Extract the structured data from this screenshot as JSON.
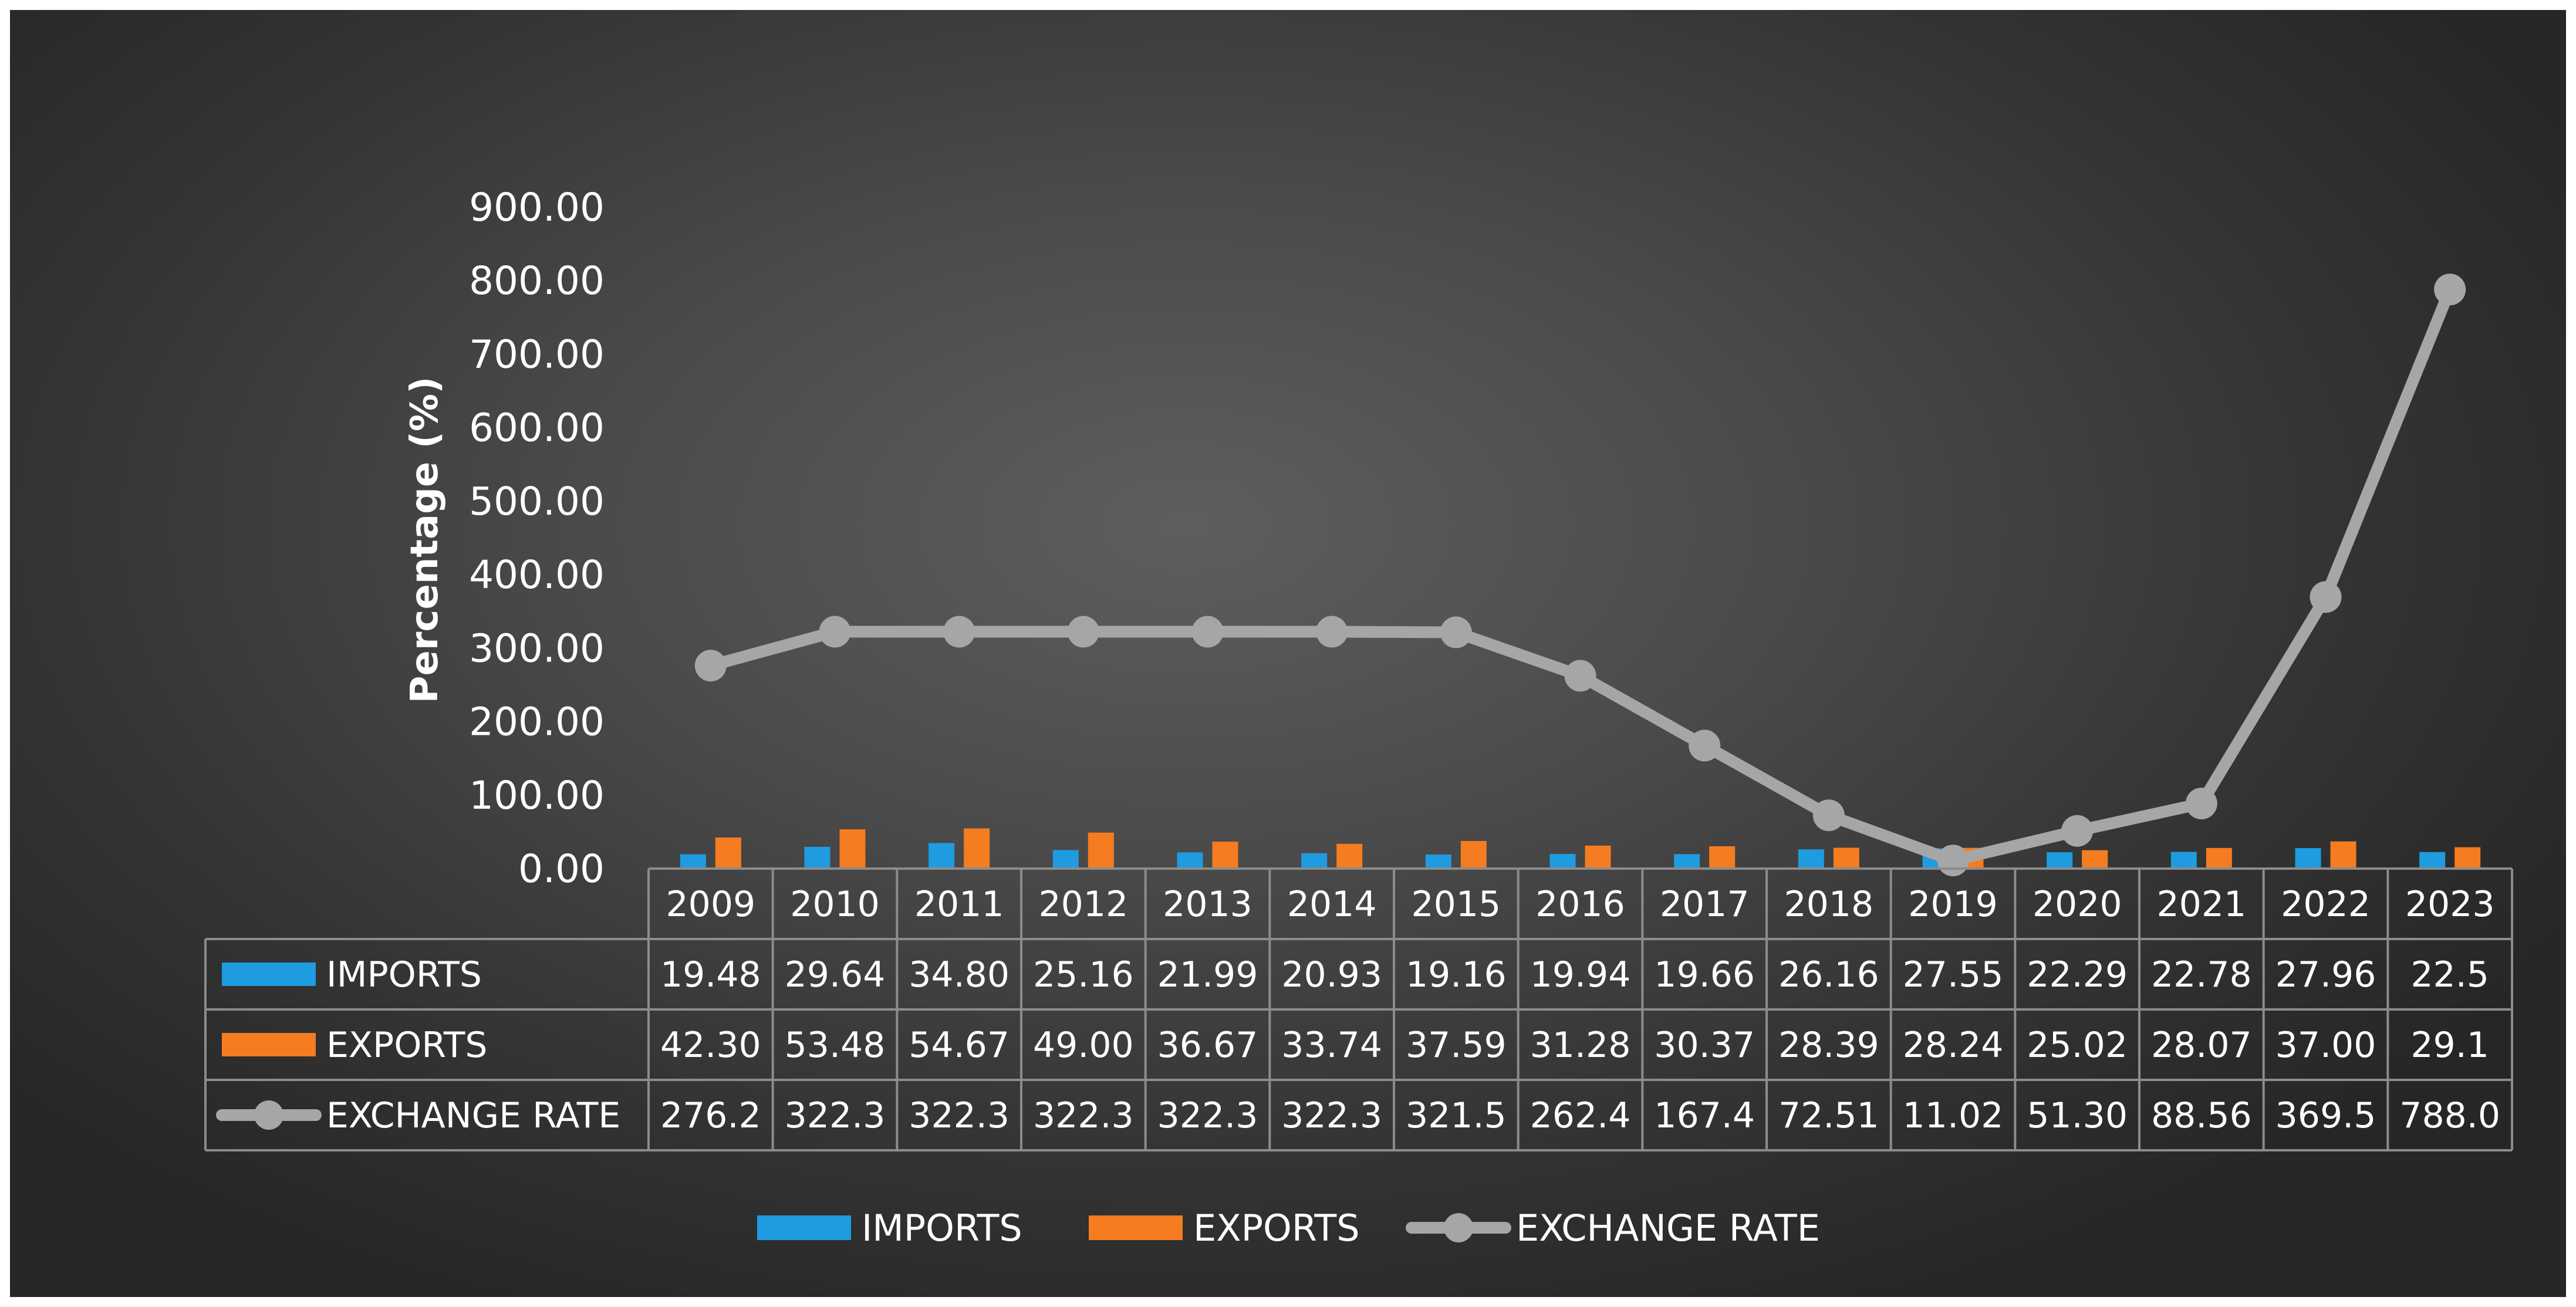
{
  "chart_data": {
    "type": "bar",
    "categories": [
      "2009",
      "2010",
      "2011",
      "2012",
      "2013",
      "2014",
      "2015",
      "2016",
      "2017",
      "2018",
      "2019",
      "2020",
      "2021",
      "2022",
      "2023"
    ],
    "series": [
      {
        "name": "IMPORTS",
        "kind": "bar",
        "color": "#1f9be0",
        "values": [
          19.48,
          29.64,
          34.8,
          25.16,
          21.99,
          20.93,
          19.16,
          19.94,
          19.66,
          26.16,
          27.55,
          22.29,
          22.78,
          27.96,
          22.5
        ],
        "labels": [
          "19.48",
          "29.64",
          "34.80",
          "25.16",
          "21.99",
          "20.93",
          "19.16",
          "19.94",
          "19.66",
          "26.16",
          "27.55",
          "22.29",
          "22.78",
          "27.96",
          "22.5"
        ]
      },
      {
        "name": "EXPORTS",
        "kind": "bar",
        "color": "#f57c20",
        "values": [
          42.3,
          53.48,
          54.67,
          49.0,
          36.67,
          33.74,
          37.59,
          31.28,
          30.37,
          28.39,
          28.24,
          25.02,
          28.07,
          37.0,
          29.1
        ],
        "labels": [
          "42.30",
          "53.48",
          "54.67",
          "49.00",
          "36.67",
          "33.74",
          "37.59",
          "31.28",
          "30.37",
          "28.39",
          "28.24",
          "25.02",
          "28.07",
          "37.00",
          "29.1"
        ]
      },
      {
        "name": "EXCHANGE RATE",
        "kind": "line",
        "color": "#a6a6a6",
        "values": [
          276.2,
          322.3,
          322.3,
          322.3,
          322.3,
          322.3,
          321.5,
          262.4,
          167.4,
          72.51,
          11.02,
          51.3,
          88.56,
          369.5,
          788.0
        ],
        "labels": [
          "276.2",
          "322.3",
          "322.3",
          "322.3",
          "322.3",
          "322.3",
          "321.5",
          "262.4",
          "167.4",
          "72.51",
          "11.02",
          "51.30",
          "88.56",
          "369.5",
          "788.0"
        ]
      }
    ],
    "yticks": [
      "0.00",
      "100.00",
      "200.00",
      "300.00",
      "400.00",
      "500.00",
      "600.00",
      "700.00",
      "800.00",
      "900.00"
    ],
    "ylim": [
      0,
      900
    ],
    "title": "",
    "xlabel": "",
    "ylabel": "Percentage (%)",
    "legend_position": "bottom",
    "data_table": true,
    "grid": false
  }
}
